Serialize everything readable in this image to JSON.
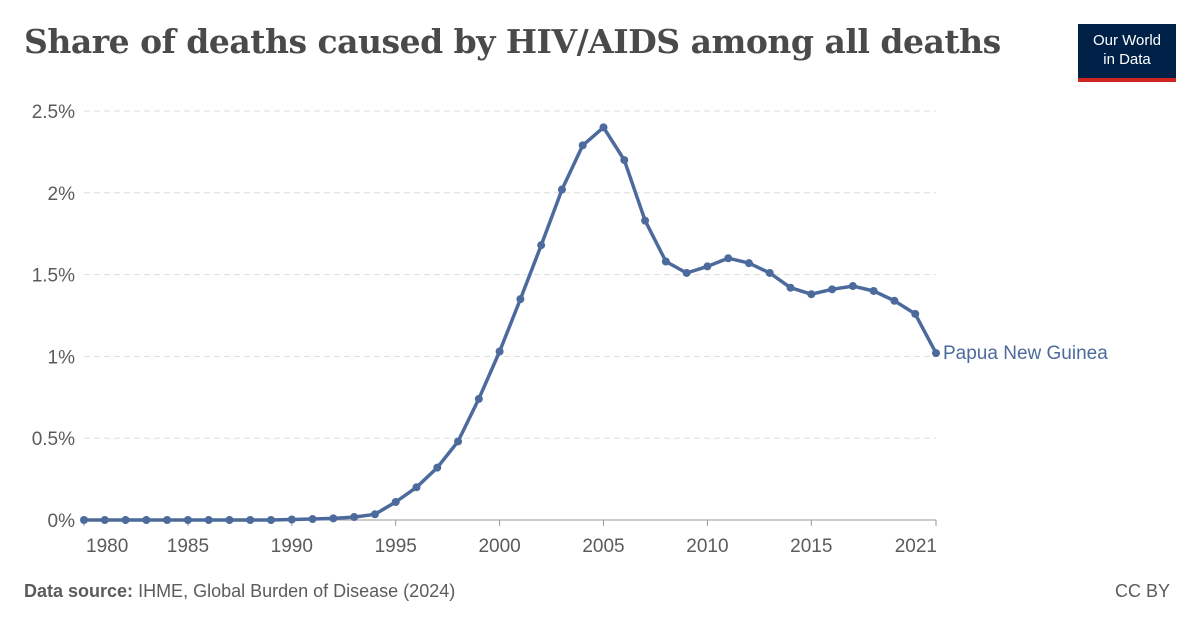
{
  "title": "Share of deaths caused by HIV/AIDS among all deaths",
  "logo": {
    "line1": "Our World",
    "line2": "in Data"
  },
  "footer": {
    "source_label": "Data source:",
    "source_text": "IHME, Global Burden of Disease (2024)",
    "license": "CC BY"
  },
  "colors": {
    "series": "#4c6a9c",
    "grid": "#dddddd",
    "text": "#5b5b5b",
    "logo_bg": "#002147",
    "logo_accent": "#ce261e"
  },
  "chart_data": {
    "type": "line",
    "title": "Share of deaths caused by HIV/AIDS among all deaths",
    "xlabel": "",
    "ylabel": "",
    "xlim": [
      1980,
      2021
    ],
    "ylim": [
      0,
      2.5
    ],
    "grid": true,
    "y_ticks": [
      0,
      0.5,
      1,
      1.5,
      2,
      2.5
    ],
    "y_tick_labels": [
      "0%",
      "0.5%",
      "1%",
      "1.5%",
      "2%",
      "2.5%"
    ],
    "x_ticks": [
      1980,
      1985,
      1990,
      1995,
      2000,
      2005,
      2010,
      2015,
      2021
    ],
    "x_tick_labels": [
      "1980",
      "1985",
      "1990",
      "1995",
      "2000",
      "2005",
      "2010",
      "2015",
      "2021"
    ],
    "series": [
      {
        "name": "Papua New Guinea",
        "x": [
          1980,
          1981,
          1982,
          1983,
          1984,
          1985,
          1986,
          1987,
          1988,
          1989,
          1990,
          1991,
          1992,
          1993,
          1994,
          1995,
          1996,
          1997,
          1998,
          1999,
          2000,
          2001,
          2002,
          2003,
          2004,
          2005,
          2006,
          2007,
          2008,
          2009,
          2010,
          2011,
          2012,
          2013,
          2014,
          2015,
          2016,
          2017,
          2018,
          2019,
          2020,
          2021
        ],
        "y": [
          0,
          0,
          0,
          0,
          0,
          0,
          0,
          0,
          0,
          0,
          0.003,
          0.006,
          0.01,
          0.018,
          0.035,
          0.11,
          0.2,
          0.32,
          0.48,
          0.74,
          1.03,
          1.35,
          1.68,
          2.02,
          2.29,
          2.4,
          2.2,
          1.83,
          1.58,
          1.51,
          1.55,
          1.6,
          1.57,
          1.51,
          1.42,
          1.38,
          1.41,
          1.43,
          1.4,
          1.34,
          1.26,
          1.02
        ]
      }
    ]
  }
}
